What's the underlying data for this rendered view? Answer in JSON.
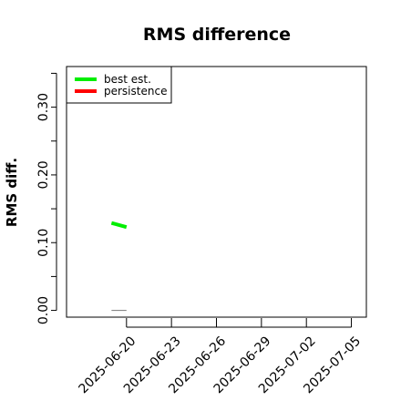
{
  "chart_data": {
    "type": "line",
    "title": "RMS difference",
    "xlabel": "",
    "ylabel": "RMS diff.",
    "x_axis": {
      "type": "date",
      "range": [
        "2025-06-16",
        "2025-07-06"
      ],
      "ticks": [
        "2025-06-20",
        "2025-06-23",
        "2025-06-26",
        "2025-06-29",
        "2025-07-02",
        "2025-07-05"
      ]
    },
    "y_axis": {
      "range": [
        -0.01,
        0.36
      ],
      "labeled_ticks": [
        0.0,
        0.1,
        0.2,
        0.3
      ],
      "label_texts": [
        "0.00",
        "0.10",
        "0.20",
        "0.30"
      ],
      "ticks": [
        0.0,
        0.05,
        0.1,
        0.15,
        0.2,
        0.25,
        0.3,
        0.35
      ]
    },
    "grid": false,
    "legend": {
      "placement": "top-left",
      "entries": [
        {
          "name": "best est.",
          "color": "#00ee00"
        },
        {
          "name": "persistence",
          "color": "#ff0000"
        }
      ]
    },
    "series": [
      {
        "name": "best est.",
        "color": "#00ee00",
        "points": [
          {
            "x": "2025-06-19",
            "y": 0.129
          },
          {
            "x": "2025-06-20",
            "y": 0.123
          }
        ]
      },
      {
        "name": "persistence",
        "color": "#ff0000",
        "points": []
      }
    ],
    "baseline": {
      "color": "#888888",
      "points": [
        {
          "x": "2025-06-19",
          "y": 0.0
        },
        {
          "x": "2025-06-20",
          "y": 0.0
        }
      ]
    }
  }
}
